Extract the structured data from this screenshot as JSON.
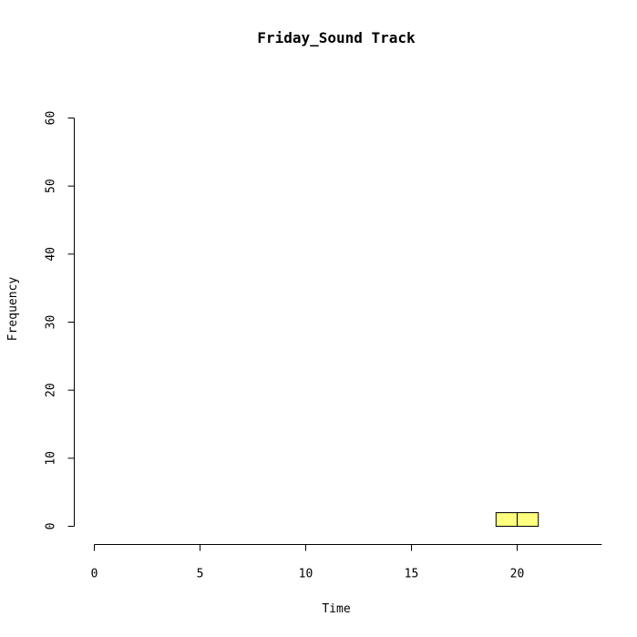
{
  "chart_data": {
    "type": "bar",
    "title": "Friday_Sound Track",
    "xlabel": "Time",
    "ylabel": "Frequency",
    "bin_width": 1,
    "x": [
      0,
      1,
      2,
      3,
      4,
      5,
      6,
      7,
      8,
      9,
      10,
      11,
      12,
      13,
      14,
      15,
      16,
      17,
      18,
      19,
      20,
      21,
      22,
      23
    ],
    "values": [
      0,
      0,
      0,
      0,
      0,
      0,
      0,
      0,
      0,
      0,
      0,
      0,
      0,
      0,
      0,
      0,
      0,
      0,
      0,
      2,
      2,
      0,
      0,
      0
    ],
    "xlim": [
      0,
      24
    ],
    "ylim": [
      0,
      60
    ],
    "xticks": [
      0,
      5,
      10,
      15,
      20
    ],
    "xtick_labels": [
      "0",
      "5",
      "10",
      "15",
      "20"
    ],
    "yticks": [
      0,
      10,
      20,
      30,
      40,
      50,
      60
    ],
    "ytick_labels": [
      "0",
      "10",
      "20",
      "30",
      "40",
      "50",
      "60"
    ],
    "bar_color": "#FFFF80",
    "grid": false
  }
}
